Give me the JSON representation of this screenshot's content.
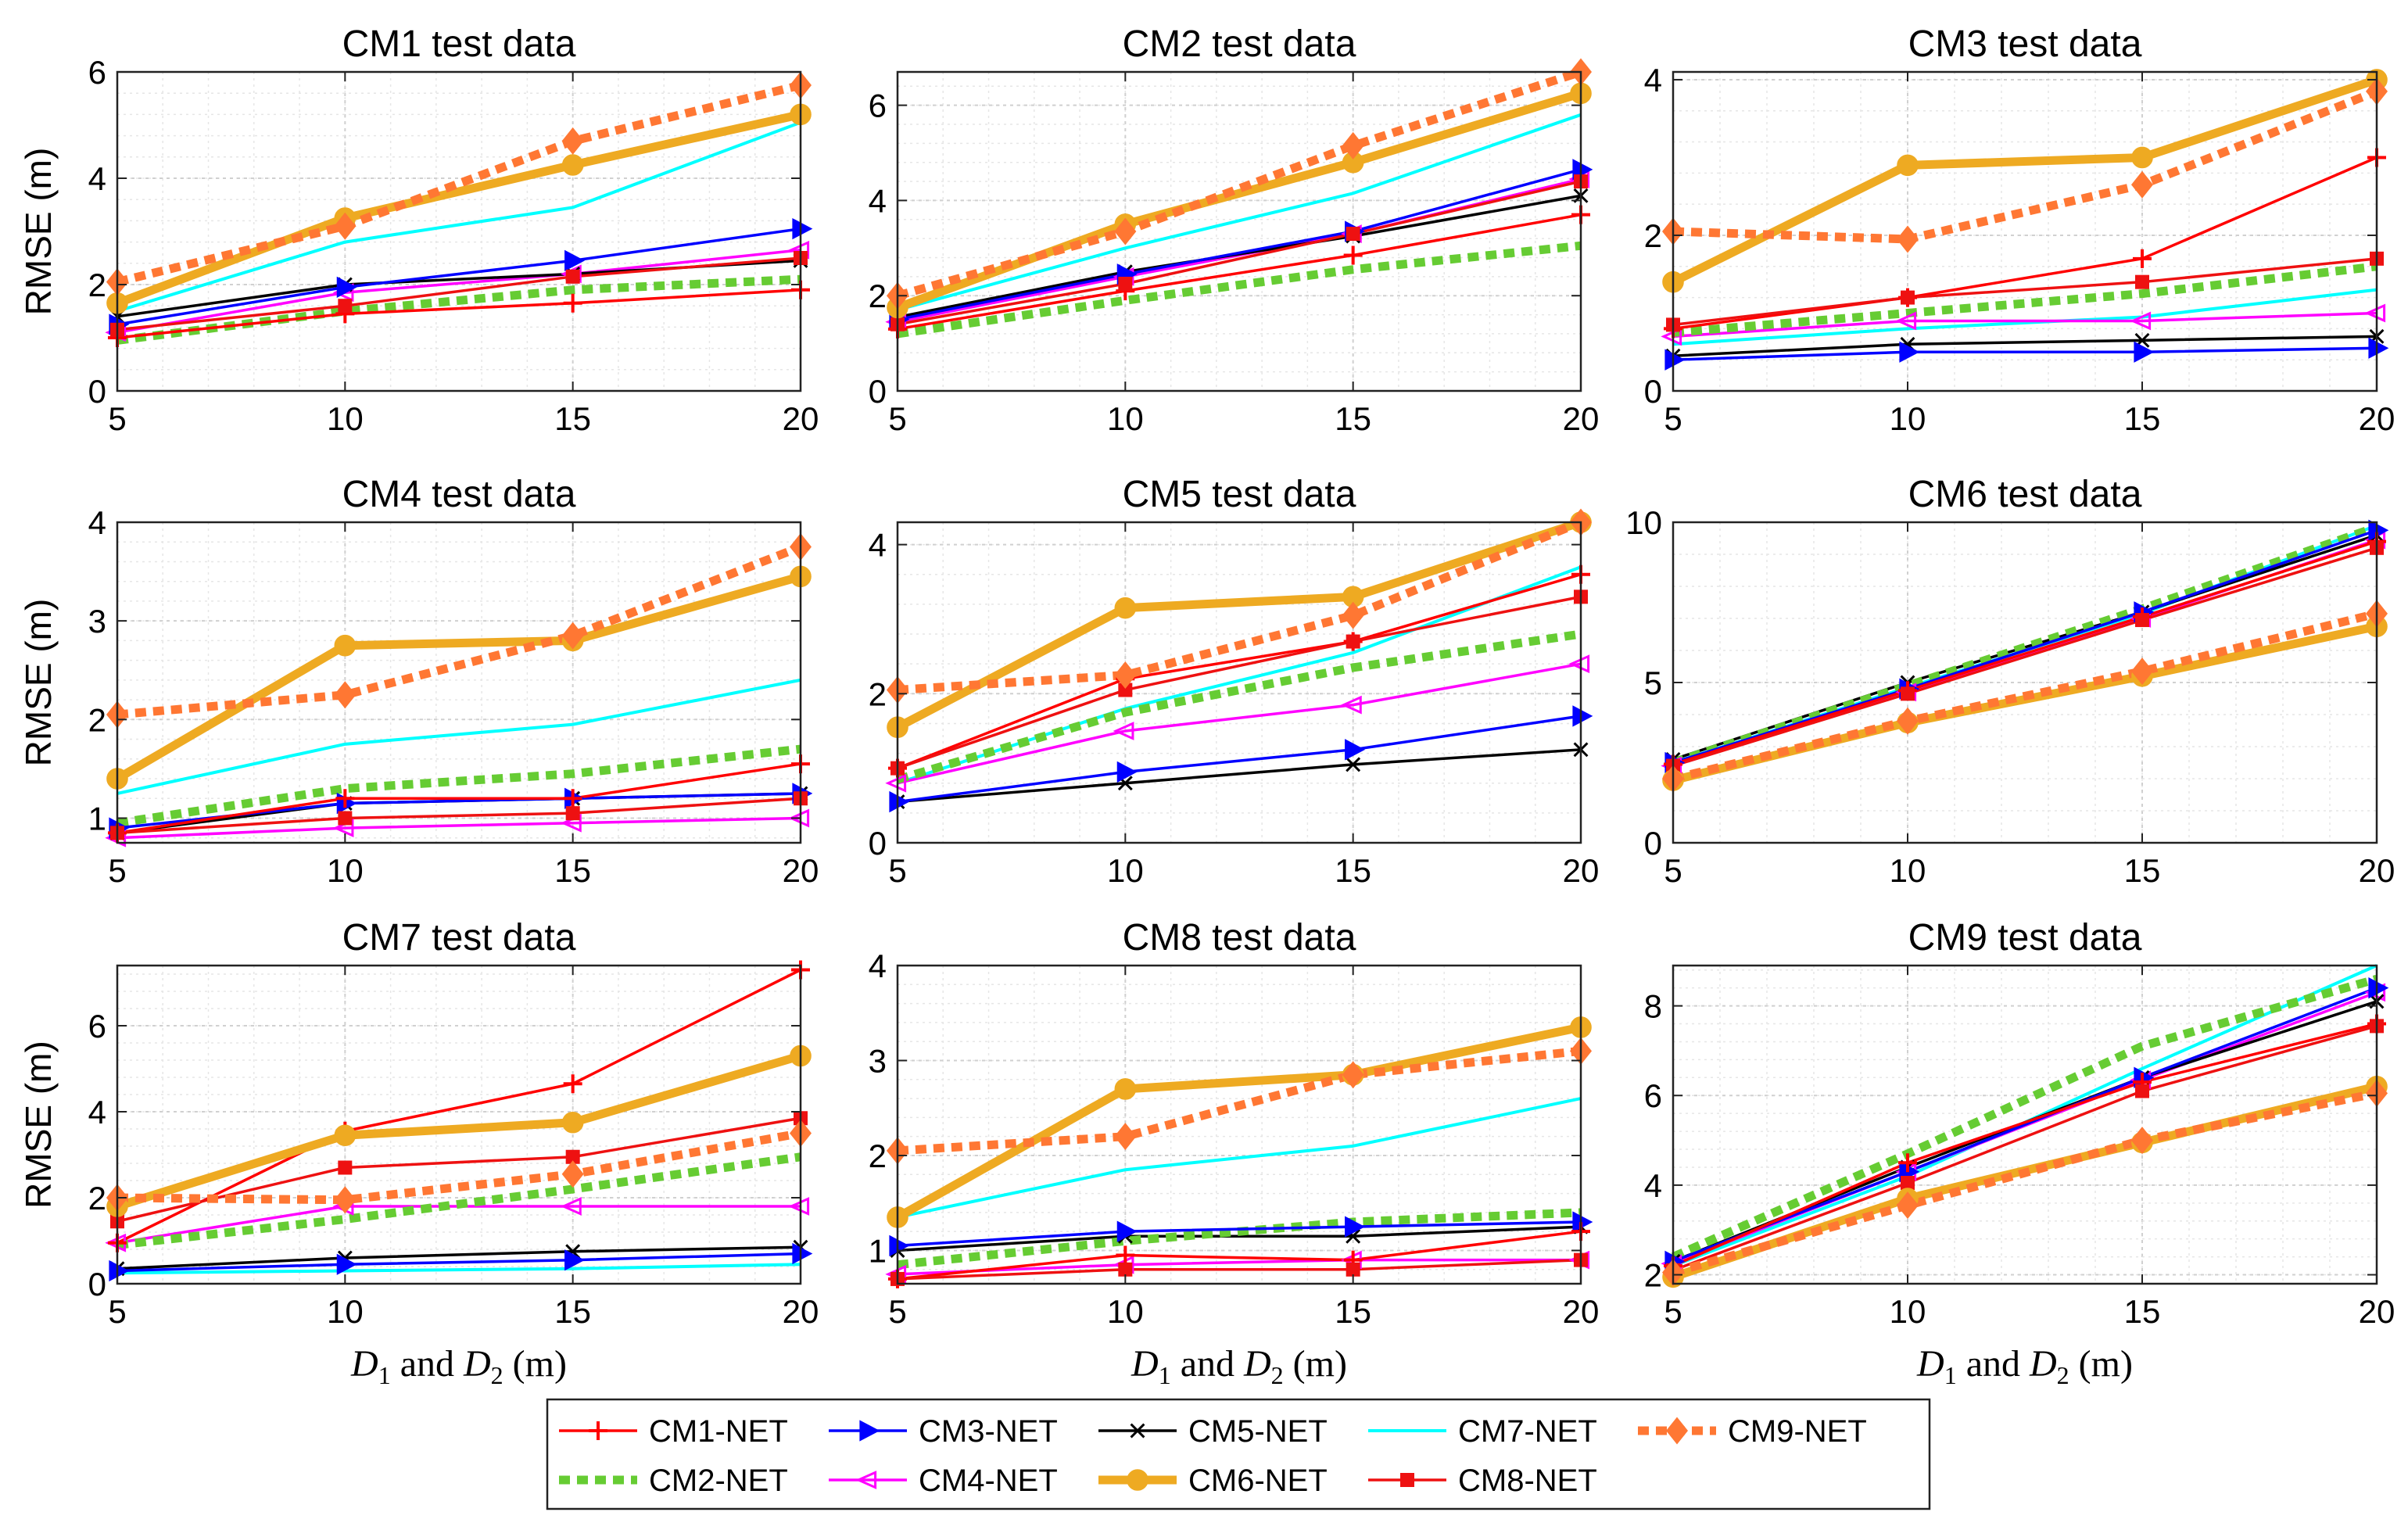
{
  "series_styles": [
    {
      "name": "CM1-NET",
      "color": "#ff0000",
      "marker": "plus",
      "dash": false,
      "thick": false
    },
    {
      "name": "CM2-NET",
      "color": "#66cc33",
      "marker": "none",
      "dash": true,
      "thick": true
    },
    {
      "name": "CM3-NET",
      "color": "#0000ff",
      "marker": "tri-right",
      "dash": false,
      "thick": false
    },
    {
      "name": "CM4-NET",
      "color": "#ff00ff",
      "marker": "tri-left-open",
      "dash": false,
      "thick": false
    },
    {
      "name": "CM5-NET",
      "color": "#000000",
      "marker": "x",
      "dash": false,
      "thick": false
    },
    {
      "name": "CM6-NET",
      "color": "#eeaa22",
      "marker": "circle",
      "dash": false,
      "thick": true
    },
    {
      "name": "CM7-NET",
      "color": "#00ffff",
      "marker": "none",
      "dash": false,
      "thick": false
    },
    {
      "name": "CM8-NET",
      "color": "#ee1111",
      "marker": "square",
      "dash": false,
      "thick": false
    },
    {
      "name": "CM9-NET",
      "color": "#ff7733",
      "marker": "diamond",
      "dash": true,
      "thick": true
    }
  ],
  "legend": {
    "items": [
      "CM1-NET",
      "CM3-NET",
      "CM5-NET",
      "CM7-NET",
      "CM9-NET",
      "CM2-NET",
      "CM4-NET",
      "CM6-NET",
      "CM8-NET"
    ]
  },
  "axis_text": {
    "ylabel": "RMSE (m)",
    "xlabel_parts": [
      "D",
      "1",
      " and ",
      "D",
      "2",
      " (m)"
    ]
  },
  "chart_data": [
    {
      "type": "line",
      "title": "CM1 test data",
      "x": [
        5,
        10,
        15,
        20
      ],
      "ylim": [
        0,
        6
      ],
      "yticks": [
        0,
        2,
        4,
        6
      ],
      "xlabel": "",
      "ylabel": "RMSE (m)",
      "series": [
        {
          "name": "CM1-NET",
          "values": [
            1.0,
            1.45,
            1.65,
            1.9
          ]
        },
        {
          "name": "CM2-NET",
          "values": [
            0.95,
            1.5,
            1.9,
            2.1
          ]
        },
        {
          "name": "CM3-NET",
          "values": [
            1.25,
            1.95,
            2.45,
            3.05
          ]
        },
        {
          "name": "CM4-NET",
          "values": [
            1.1,
            1.85,
            2.2,
            2.65
          ]
        },
        {
          "name": "CM5-NET",
          "values": [
            1.4,
            2.0,
            2.2,
            2.45
          ]
        },
        {
          "name": "CM6-NET",
          "values": [
            1.65,
            3.25,
            4.25,
            5.2
          ]
        },
        {
          "name": "CM7-NET",
          "values": [
            1.5,
            2.8,
            3.45,
            5.05
          ]
        },
        {
          "name": "CM8-NET",
          "values": [
            1.15,
            1.6,
            2.15,
            2.5
          ]
        },
        {
          "name": "CM9-NET",
          "values": [
            2.05,
            3.1,
            4.7,
            5.75
          ]
        }
      ]
    },
    {
      "type": "line",
      "title": "CM2 test data",
      "x": [
        5,
        10,
        15,
        20
      ],
      "ylim": [
        0,
        6.7
      ],
      "yticks": [
        0,
        2,
        4,
        6
      ],
      "xlabel": "",
      "ylabel": "",
      "series": [
        {
          "name": "CM1-NET",
          "values": [
            1.3,
            2.1,
            2.85,
            3.7
          ]
        },
        {
          "name": "CM2-NET",
          "values": [
            1.2,
            1.9,
            2.55,
            3.05
          ]
        },
        {
          "name": "CM3-NET",
          "values": [
            1.5,
            2.45,
            3.35,
            4.65
          ]
        },
        {
          "name": "CM4-NET",
          "values": [
            1.45,
            2.4,
            3.3,
            4.45
          ]
        },
        {
          "name": "CM5-NET",
          "values": [
            1.55,
            2.5,
            3.25,
            4.1
          ]
        },
        {
          "name": "CM6-NET",
          "values": [
            1.75,
            3.5,
            4.8,
            6.25
          ]
        },
        {
          "name": "CM7-NET",
          "values": [
            1.7,
            3.0,
            4.15,
            5.8
          ]
        },
        {
          "name": "CM8-NET",
          "values": [
            1.4,
            2.25,
            3.3,
            4.4
          ]
        },
        {
          "name": "CM9-NET",
          "values": [
            2.0,
            3.35,
            5.15,
            6.7
          ]
        }
      ]
    },
    {
      "type": "line",
      "title": "CM3 test data",
      "x": [
        5,
        10,
        15,
        20
      ],
      "ylim": [
        0,
        4.1
      ],
      "yticks": [
        0,
        2,
        4
      ],
      "xlabel": "",
      "ylabel": "",
      "series": [
        {
          "name": "CM1-NET",
          "values": [
            0.8,
            1.2,
            1.7,
            3.0
          ]
        },
        {
          "name": "CM2-NET",
          "values": [
            0.75,
            1.0,
            1.25,
            1.6
          ]
        },
        {
          "name": "CM3-NET",
          "values": [
            0.4,
            0.5,
            0.5,
            0.55
          ]
        },
        {
          "name": "CM4-NET",
          "values": [
            0.7,
            0.9,
            0.9,
            1.0
          ]
        },
        {
          "name": "CM5-NET",
          "values": [
            0.45,
            0.6,
            0.65,
            0.7
          ]
        },
        {
          "name": "CM6-NET",
          "values": [
            1.4,
            2.9,
            3.0,
            4.0
          ]
        },
        {
          "name": "CM7-NET",
          "values": [
            0.6,
            0.8,
            0.95,
            1.3
          ]
        },
        {
          "name": "CM8-NET",
          "values": [
            0.85,
            1.2,
            1.4,
            1.7
          ]
        },
        {
          "name": "CM9-NET",
          "values": [
            2.05,
            1.95,
            2.65,
            3.85
          ]
        }
      ]
    },
    {
      "type": "line",
      "title": "CM4 test data",
      "x": [
        5,
        10,
        15,
        20
      ],
      "ylim": [
        0.75,
        4
      ],
      "yticks": [
        1,
        2,
        3,
        4
      ],
      "xlabel": "",
      "ylabel": "RMSE (m)",
      "series": [
        {
          "name": "CM1-NET",
          "values": [
            0.85,
            1.2,
            1.2,
            1.55
          ]
        },
        {
          "name": "CM2-NET",
          "values": [
            0.95,
            1.3,
            1.45,
            1.7
          ]
        },
        {
          "name": "CM3-NET",
          "values": [
            0.9,
            1.15,
            1.2,
            1.25
          ]
        },
        {
          "name": "CM4-NET",
          "values": [
            0.8,
            0.9,
            0.95,
            1.0
          ]
        },
        {
          "name": "CM5-NET",
          "values": [
            0.85,
            1.15,
            1.2,
            1.25
          ]
        },
        {
          "name": "CM6-NET",
          "values": [
            1.4,
            2.75,
            2.8,
            3.45
          ]
        },
        {
          "name": "CM7-NET",
          "values": [
            1.25,
            1.75,
            1.95,
            2.4
          ]
        },
        {
          "name": "CM8-NET",
          "values": [
            0.85,
            1.0,
            1.05,
            1.2
          ]
        },
        {
          "name": "CM9-NET",
          "values": [
            2.05,
            2.25,
            2.85,
            3.75
          ]
        }
      ]
    },
    {
      "type": "line",
      "title": "CM5 test data",
      "x": [
        5,
        10,
        15,
        20
      ],
      "ylim": [
        0,
        4.3
      ],
      "yticks": [
        0,
        2,
        4
      ],
      "xlabel": "",
      "ylabel": "",
      "series": [
        {
          "name": "CM1-NET",
          "values": [
            1.0,
            2.2,
            2.7,
            3.6
          ]
        },
        {
          "name": "CM2-NET",
          "values": [
            0.85,
            1.75,
            2.35,
            2.8
          ]
        },
        {
          "name": "CM3-NET",
          "values": [
            0.55,
            0.95,
            1.25,
            1.7
          ]
        },
        {
          "name": "CM4-NET",
          "values": [
            0.8,
            1.5,
            1.85,
            2.4
          ]
        },
        {
          "name": "CM5-NET",
          "values": [
            0.55,
            0.8,
            1.05,
            1.25
          ]
        },
        {
          "name": "CM6-NET",
          "values": [
            1.55,
            3.15,
            3.3,
            4.3
          ]
        },
        {
          "name": "CM7-NET",
          "values": [
            0.8,
            1.8,
            2.55,
            3.7
          ]
        },
        {
          "name": "CM8-NET",
          "values": [
            1.0,
            2.05,
            2.7,
            3.3
          ]
        },
        {
          "name": "CM9-NET",
          "values": [
            2.05,
            2.25,
            3.05,
            4.3
          ]
        }
      ]
    },
    {
      "type": "line",
      "title": "CM6 test data",
      "x": [
        5,
        10,
        15,
        20
      ],
      "ylim": [
        0,
        10
      ],
      "yticks": [
        0,
        5,
        10
      ],
      "xlabel": "",
      "ylabel": "",
      "series": [
        {
          "name": "CM1-NET",
          "values": [
            2.45,
            4.75,
            7.05,
            9.4
          ]
        },
        {
          "name": "CM2-NET",
          "values": [
            2.5,
            4.9,
            7.3,
            9.85
          ]
        },
        {
          "name": "CM3-NET",
          "values": [
            2.5,
            4.8,
            7.2,
            9.75
          ]
        },
        {
          "name": "CM4-NET",
          "values": [
            2.4,
            4.7,
            7.0,
            9.45
          ]
        },
        {
          "name": "CM5-NET",
          "values": [
            2.6,
            5.0,
            7.2,
            9.6
          ]
        },
        {
          "name": "CM6-NET",
          "values": [
            1.95,
            3.75,
            5.2,
            6.75
          ]
        },
        {
          "name": "CM7-NET",
          "values": [
            2.5,
            4.85,
            7.15,
            9.9
          ]
        },
        {
          "name": "CM8-NET",
          "values": [
            2.4,
            4.65,
            6.95,
            9.2
          ]
        },
        {
          "name": "CM9-NET",
          "values": [
            2.0,
            3.8,
            5.35,
            7.15
          ]
        }
      ]
    },
    {
      "type": "line",
      "title": "CM7 test data",
      "x": [
        5,
        10,
        15,
        20
      ],
      "ylim": [
        0,
        7.4
      ],
      "yticks": [
        0,
        2,
        4,
        6
      ],
      "xlabel": "D1 and D2 (m)",
      "ylabel": "RMSE (m)",
      "series": [
        {
          "name": "CM1-NET",
          "values": [
            0.95,
            3.55,
            4.65,
            7.3
          ]
        },
        {
          "name": "CM2-NET",
          "values": [
            0.9,
            1.5,
            2.2,
            2.95
          ]
        },
        {
          "name": "CM3-NET",
          "values": [
            0.3,
            0.45,
            0.55,
            0.7
          ]
        },
        {
          "name": "CM4-NET",
          "values": [
            0.95,
            1.8,
            1.8,
            1.8
          ]
        },
        {
          "name": "CM5-NET",
          "values": [
            0.35,
            0.6,
            0.75,
            0.85
          ]
        },
        {
          "name": "CM6-NET",
          "values": [
            1.8,
            3.45,
            3.75,
            5.3
          ]
        },
        {
          "name": "CM7-NET",
          "values": [
            0.25,
            0.3,
            0.35,
            0.45
          ]
        },
        {
          "name": "CM8-NET",
          "values": [
            1.45,
            2.7,
            2.95,
            3.85
          ]
        },
        {
          "name": "CM9-NET",
          "values": [
            2.0,
            1.95,
            2.55,
            3.5
          ]
        }
      ]
    },
    {
      "type": "line",
      "title": "CM8 test data",
      "x": [
        5,
        10,
        15,
        20
      ],
      "ylim": [
        0.65,
        4
      ],
      "yticks": [
        1,
        2,
        3,
        4
      ],
      "xlabel": "D1 and D2 (m)",
      "ylabel": "",
      "series": [
        {
          "name": "CM1-NET",
          "values": [
            0.7,
            0.95,
            0.9,
            1.2
          ]
        },
        {
          "name": "CM2-NET",
          "values": [
            0.85,
            1.1,
            1.3,
            1.4
          ]
        },
        {
          "name": "CM3-NET",
          "values": [
            1.05,
            1.2,
            1.25,
            1.3
          ]
        },
        {
          "name": "CM4-NET",
          "values": [
            0.75,
            0.85,
            0.9,
            0.9
          ]
        },
        {
          "name": "CM5-NET",
          "values": [
            1.0,
            1.15,
            1.15,
            1.25
          ]
        },
        {
          "name": "CM6-NET",
          "values": [
            1.35,
            2.7,
            2.85,
            3.35
          ]
        },
        {
          "name": "CM7-NET",
          "values": [
            1.35,
            1.85,
            2.1,
            2.6
          ]
        },
        {
          "name": "CM8-NET",
          "values": [
            0.7,
            0.8,
            0.8,
            0.9
          ]
        },
        {
          "name": "CM9-NET",
          "values": [
            2.05,
            2.2,
            2.85,
            3.1
          ]
        }
      ]
    },
    {
      "type": "line",
      "title": "CM9 test data",
      "x": [
        5,
        10,
        15,
        20
      ],
      "ylim": [
        1.8,
        8.9
      ],
      "yticks": [
        2,
        4,
        6,
        8
      ],
      "xlabel": "D1 and D2 (m)",
      "ylabel": "",
      "series": [
        {
          "name": "CM1-NET",
          "values": [
            2.2,
            4.5,
            6.3,
            7.6
          ]
        },
        {
          "name": "CM2-NET",
          "values": [
            2.4,
            4.7,
            7.1,
            8.6
          ]
        },
        {
          "name": "CM3-NET",
          "values": [
            2.3,
            4.3,
            6.4,
            8.4
          ]
        },
        {
          "name": "CM4-NET",
          "values": [
            2.25,
            4.3,
            6.35,
            8.3
          ]
        },
        {
          "name": "CM5-NET",
          "values": [
            2.3,
            4.4,
            6.4,
            8.1
          ]
        },
        {
          "name": "CM6-NET",
          "values": [
            1.95,
            3.7,
            4.95,
            6.2
          ]
        },
        {
          "name": "CM7-NET",
          "values": [
            2.2,
            4.2,
            6.6,
            8.9
          ]
        },
        {
          "name": "CM8-NET",
          "values": [
            2.1,
            4.05,
            6.1,
            7.55
          ]
        },
        {
          "name": "CM9-NET",
          "values": [
            2.05,
            3.55,
            5.0,
            6.05
          ]
        }
      ]
    }
  ]
}
